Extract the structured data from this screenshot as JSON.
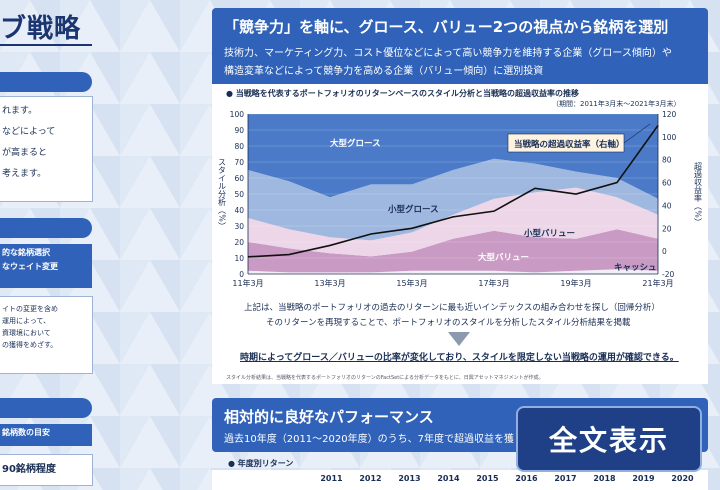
{
  "left": {
    "title_fragment": "ブ戦略",
    "box1_lines": [
      "れます。",
      "などによって",
      "が高まると",
      "考えます。"
    ],
    "box2_header": [
      "的な銘柄選択",
      "なウェイト変更"
    ],
    "box2_lines": [
      "イトの変更を含め",
      "運用によって、",
      "資環境において",
      "の獲得をめざす。"
    ],
    "box3_header": "銘柄数の目安",
    "box3_value": "90銘柄程度"
  },
  "panel": {
    "title": "「競争力」を軸に、グロース、バリュー2つの視点から銘柄を選別",
    "line1": "技術力、マーケティング力、コスト優位などによって高い競争力を維持する企業（グロース傾向）や",
    "line2": "構造変革などによって競争力を高める企業（バリュー傾向）に選別投資"
  },
  "chart_header": {
    "title": "● 当戦略を代表するポートフォリオのリターンベースのスタイル分析と当戦略の超過収益率の推移",
    "period": "（期間：2011年3月末〜2021年3月末）"
  },
  "chart_data": {
    "type": "area",
    "x": [
      "11年3月",
      "12年3月",
      "13年3月",
      "14年3月",
      "15年3月",
      "16年3月",
      "17年3月",
      "18年3月",
      "19年3月",
      "20年3月",
      "21年3月"
    ],
    "x_tick_labels": [
      "11年3月",
      "13年3月",
      "15年3月",
      "17年3月",
      "19年3月",
      "21年3月"
    ],
    "ylabel_left": "スタイル分析（%）",
    "ylabel_right": "超過収益率（%）",
    "ylim_left": [
      0,
      100
    ],
    "ylim_right": [
      -20,
      120
    ],
    "yticks_left": [
      0,
      10,
      20,
      30,
      40,
      50,
      60,
      70,
      80,
      90,
      100
    ],
    "yticks_right": [
      -20,
      0,
      20,
      40,
      60,
      80,
      100,
      120
    ],
    "series": [
      {
        "name": "キャッシュ",
        "values": [
          2,
          1,
          1,
          1,
          2,
          2,
          2,
          1,
          2,
          3,
          2
        ],
        "color": "#f2eef6"
      },
      {
        "name": "大型バリュー",
        "values": [
          18,
          15,
          12,
          10,
          12,
          20,
          25,
          22,
          20,
          25,
          20
        ],
        "color": "#c99ac4"
      },
      {
        "name": "小型バリュー",
        "values": [
          15,
          12,
          10,
          10,
          12,
          15,
          20,
          28,
          32,
          20,
          15
        ],
        "color": "#ecd6e8"
      },
      {
        "name": "小型グロース",
        "values": [
          30,
          30,
          25,
          35,
          30,
          28,
          25,
          18,
          10,
          12,
          10
        ],
        "color": "#9fb8e0"
      },
      {
        "name": "大型グロース",
        "values": [
          35,
          42,
          52,
          44,
          44,
          35,
          28,
          31,
          36,
          40,
          53
        ],
        "color": "#4a7ac8"
      }
    ],
    "line": {
      "name": "当戦略の超過収益率（右軸）",
      "values": [
        -5,
        -3,
        5,
        15,
        20,
        30,
        35,
        55,
        50,
        60,
        110
      ],
      "color": "#111111"
    },
    "annotations": [
      "大型グロース",
      "小型グロース",
      "小型バリュー",
      "大型バリュー",
      "キャッシュ",
      "当戦略の超過収益率（右軸）"
    ]
  },
  "notes": {
    "line1": "上記は、当戦略のポートフォリオの過去のリターンに最も近いインデックスの組み合わせを探し（回帰分析）",
    "line2": "そのリターンを再現することで、ポートフォリオのスタイルを分析したスタイル分析結果を掲載",
    "emphasis": "時期によってグロース／バリューの比率が変化しており、スタイルを限定しない当戦略の運用が確認できる。",
    "footnote": "スタイル分析結果は、当戦略を代表するポートフォリオのリターンのFactSetによる分析データをもとに、日興アセットマネジメントが作成。"
  },
  "bottom": {
    "title": "相対的に良好なパフォーマンス",
    "line": "過去10年度（2011〜2020年度）のうち、7年度で超過収益を獲",
    "table_label": "● 年度別リターン",
    "years": [
      "2011",
      "2012",
      "2013",
      "2014",
      "2015",
      "2016",
      "2017",
      "2018",
      "2019",
      "2020"
    ]
  },
  "button": {
    "label": "全文表示"
  }
}
